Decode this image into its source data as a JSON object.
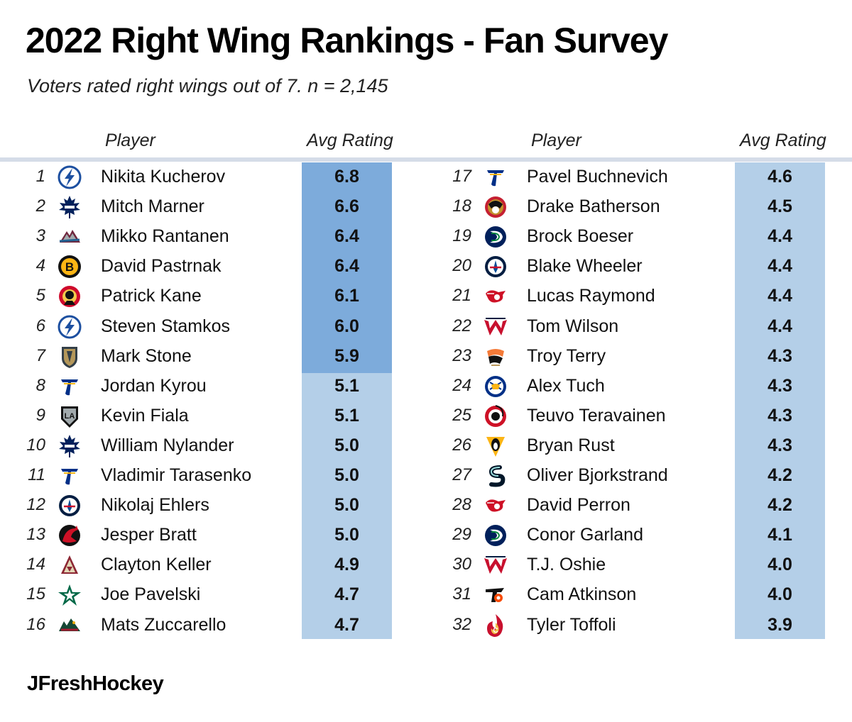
{
  "title": "2022 Right Wing Rankings - Fan Survey",
  "subtitle": "Voters rated right wings out of 7. n = 2,145",
  "columns": {
    "player": "Player",
    "rating": "Avg Rating"
  },
  "brand": "JFreshHockey",
  "colors": {
    "top_tier": "#7dabdb",
    "lower_tier": "#b4cfe8",
    "header_rule": "#d5dce8"
  },
  "chart_data": {
    "type": "table",
    "title": "2022 Right Wing Rankings - Fan Survey",
    "subtitle": "Voters rated right wings out of 7. n = 2,145",
    "headers": [
      "Player",
      "Avg Rating"
    ],
    "rows": [
      {
        "rank": "1",
        "player": "Nikita Kucherov",
        "rating": "6.8",
        "team_icon": "lightning-logo-icon"
      },
      {
        "rank": "2",
        "player": "Mitch Marner",
        "rating": "6.6",
        "team_icon": "maple-leafs-logo-icon"
      },
      {
        "rank": "3",
        "player": "Mikko Rantanen",
        "rating": "6.4",
        "team_icon": "avalanche-logo-icon"
      },
      {
        "rank": "4",
        "player": "David Pastrnak",
        "rating": "6.4",
        "team_icon": "bruins-logo-icon"
      },
      {
        "rank": "5",
        "player": "Patrick Kane",
        "rating": "6.1",
        "team_icon": "blackhawks-logo-icon"
      },
      {
        "rank": "6",
        "player": "Steven Stamkos",
        "rating": "6.0",
        "team_icon": "lightning-logo-icon"
      },
      {
        "rank": "7",
        "player": "Mark Stone",
        "rating": "5.9",
        "team_icon": "golden-knights-logo-icon"
      },
      {
        "rank": "8",
        "player": "Jordan Kyrou",
        "rating": "5.1",
        "team_icon": "blues-logo-icon"
      },
      {
        "rank": "9",
        "player": "Kevin Fiala",
        "rating": "5.1",
        "team_icon": "kings-logo-icon"
      },
      {
        "rank": "10",
        "player": "William Nylander",
        "rating": "5.0",
        "team_icon": "maple-leafs-logo-icon"
      },
      {
        "rank": "11",
        "player": "Vladimir Tarasenko",
        "rating": "5.0",
        "team_icon": "blues-logo-icon"
      },
      {
        "rank": "12",
        "player": "Nikolaj Ehlers",
        "rating": "5.0",
        "team_icon": "jets-logo-icon"
      },
      {
        "rank": "13",
        "player": "Jesper Bratt",
        "rating": "5.0",
        "team_icon": "devils-logo-icon"
      },
      {
        "rank": "14",
        "player": "Clayton Keller",
        "rating": "4.9",
        "team_icon": "coyotes-logo-icon"
      },
      {
        "rank": "15",
        "player": "Joe Pavelski",
        "rating": "4.7",
        "team_icon": "stars-logo-icon"
      },
      {
        "rank": "16",
        "player": "Mats Zuccarello",
        "rating": "4.7",
        "team_icon": "wild-logo-icon"
      },
      {
        "rank": "17",
        "player": "Pavel Buchnevich",
        "rating": "4.6",
        "team_icon": "blues-logo-icon"
      },
      {
        "rank": "18",
        "player": "Drake Batherson",
        "rating": "4.5",
        "team_icon": "senators-logo-icon"
      },
      {
        "rank": "19",
        "player": "Brock Boeser",
        "rating": "4.4",
        "team_icon": "canucks-logo-icon"
      },
      {
        "rank": "20",
        "player": "Blake Wheeler",
        "rating": "4.4",
        "team_icon": "jets-logo-icon"
      },
      {
        "rank": "21",
        "player": "Lucas Raymond",
        "rating": "4.4",
        "team_icon": "red-wings-logo-icon"
      },
      {
        "rank": "22",
        "player": "Tom Wilson",
        "rating": "4.4",
        "team_icon": "capitals-logo-icon"
      },
      {
        "rank": "23",
        "player": "Troy Terry",
        "rating": "4.3",
        "team_icon": "ducks-logo-icon"
      },
      {
        "rank": "24",
        "player": "Alex Tuch",
        "rating": "4.3",
        "team_icon": "sabres-logo-icon"
      },
      {
        "rank": "25",
        "player": "Teuvo Teravainen",
        "rating": "4.3",
        "team_icon": "hurricanes-logo-icon"
      },
      {
        "rank": "26",
        "player": "Bryan Rust",
        "rating": "4.3",
        "team_icon": "penguins-logo-icon"
      },
      {
        "rank": "27",
        "player": "Oliver Bjorkstrand",
        "rating": "4.2",
        "team_icon": "kraken-logo-icon"
      },
      {
        "rank": "28",
        "player": "David Perron",
        "rating": "4.2",
        "team_icon": "red-wings-logo-icon"
      },
      {
        "rank": "29",
        "player": "Conor Garland",
        "rating": "4.1",
        "team_icon": "canucks-logo-icon"
      },
      {
        "rank": "30",
        "player": "T.J. Oshie",
        "rating": "4.0",
        "team_icon": "capitals-logo-icon"
      },
      {
        "rank": "31",
        "player": "Cam Atkinson",
        "rating": "4.0",
        "team_icon": "flyers-logo-icon"
      },
      {
        "rank": "32",
        "player": "Tyler Toffoli",
        "rating": "3.9",
        "team_icon": "flames-logo-icon"
      }
    ]
  }
}
